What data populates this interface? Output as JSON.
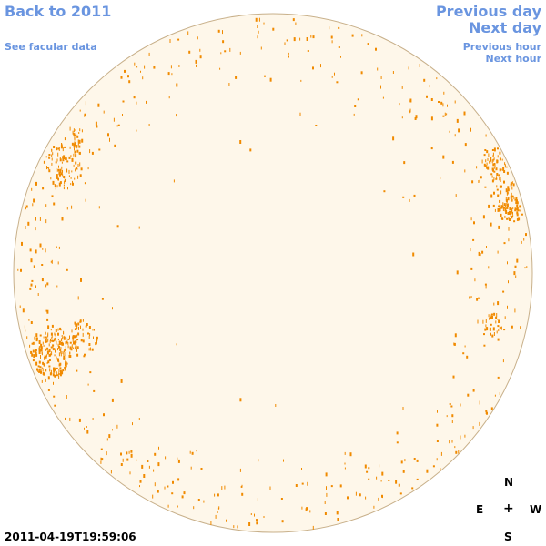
{
  "nav": {
    "back_label": "Back to 2011",
    "facular_label": "See facular data",
    "prev_day_label": "Previous day",
    "next_day_label": "Next day",
    "prev_hour_label": "Previous hour",
    "next_hour_label": "Next hour"
  },
  "compass": {
    "north": "N",
    "east": "E",
    "center": "+",
    "west": "W",
    "south": "S"
  },
  "timestamp": "2011-04-19T19:59:06",
  "colors": {
    "disk_fill": "#fef7ea",
    "disk_stroke": "#c8b08a",
    "facula": "#f08a00",
    "link": "#6a95e0"
  }
}
